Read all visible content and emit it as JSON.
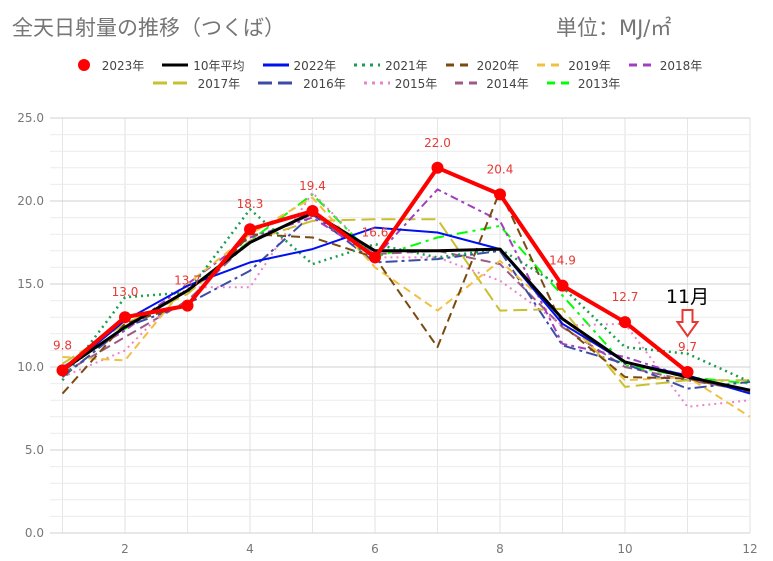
{
  "header": {
    "title": "全天日射量の推移（つくば）",
    "unit": "単位：MJ/㎡"
  },
  "annotation": {
    "month_label": "11月"
  },
  "chart_data": {
    "type": "line",
    "xlim": [
      0.8,
      12
    ],
    "ylim": [
      0,
      25
    ],
    "x_ticks": [
      2,
      4,
      6,
      8,
      10,
      12
    ],
    "y_ticks": [
      0.0,
      5.0,
      10.0,
      15.0,
      20.0,
      25.0
    ],
    "y_tick_labels": [
      "0.0",
      "5.0",
      "10.0",
      "15.0",
      "20.0",
      "25.0"
    ],
    "grid": true,
    "legend_position": "top",
    "legend_rows": [
      [
        "2023年",
        "10年平均",
        "2022年",
        "2021年",
        "2020年",
        "2019年",
        "2018年"
      ],
      [
        "2017年",
        "2016年",
        "2015年",
        "2014年",
        "2013年"
      ]
    ],
    "series": [
      {
        "name": "2013年",
        "color": "#00ff00",
        "dash": "11,5,3,5",
        "width": 2,
        "x": [
          1,
          2,
          3,
          4,
          5,
          6,
          7,
          8,
          9,
          10,
          11,
          12
        ],
        "y": [
          9.8,
          12.3,
          14.6,
          17.6,
          20.4,
          16.6,
          17.8,
          18.5,
          14.3,
          10.1,
          9.4,
          9.0
        ]
      },
      {
        "name": "2014年",
        "color": "#9c5a85",
        "dash": "10,5",
        "width": 2,
        "x": [
          1,
          2,
          3,
          4,
          5,
          6,
          7,
          8,
          9,
          10,
          11,
          12
        ],
        "y": [
          9.6,
          11.8,
          14.0,
          17.6,
          19.2,
          16.8,
          17.0,
          16.2,
          12.4,
          10.0,
          9.2,
          8.6
        ]
      },
      {
        "name": "2015年",
        "color": "#ee82c8",
        "dash": "2,4",
        "width": 2,
        "x": [
          1,
          2,
          3,
          4,
          5,
          6,
          7,
          8,
          9,
          10,
          11,
          12
        ],
        "y": [
          9.4,
          11.0,
          14.8,
          14.8,
          20.5,
          16.6,
          16.6,
          15.2,
          12.5,
          12.6,
          7.6,
          8.0
        ]
      },
      {
        "name": "2016年",
        "color": "#3b4ba8",
        "dash": "12,4,3,4",
        "width": 2,
        "x": [
          1,
          2,
          3,
          4,
          5,
          6,
          7,
          8,
          9,
          10,
          11,
          12
        ],
        "y": [
          9.4,
          12.4,
          13.8,
          15.8,
          19.2,
          16.3,
          16.5,
          17.0,
          11.3,
          10.2,
          8.7,
          9.1
        ]
      },
      {
        "name": "2017年",
        "color": "#c8c030",
        "dash": "14,6",
        "width": 2,
        "x": [
          1,
          2,
          3,
          4,
          5,
          6,
          7,
          8,
          9,
          10,
          11,
          12
        ],
        "y": [
          10.2,
          12.6,
          14.4,
          17.6,
          18.8,
          18.9,
          18.9,
          13.4,
          13.5,
          8.8,
          9.2,
          9.2
        ]
      },
      {
        "name": "2018年",
        "color": "#a040c0",
        "dash": "8,4,3,4",
        "width": 2,
        "x": [
          1,
          2,
          3,
          4,
          5,
          6,
          7,
          8,
          9,
          10,
          11,
          12
        ],
        "y": [
          10.0,
          12.2,
          15.0,
          17.8,
          19.0,
          16.6,
          20.7,
          18.8,
          11.4,
          10.6,
          9.4,
          8.5
        ]
      },
      {
        "name": "2019年",
        "color": "#f0c040",
        "dash": "8,5",
        "width": 2,
        "x": [
          1,
          2,
          3,
          4,
          5,
          6,
          7,
          8,
          9,
          10,
          11,
          12
        ],
        "y": [
          10.6,
          10.4,
          15.0,
          18.0,
          20.2,
          16.0,
          13.4,
          16.4,
          13.0,
          9.2,
          9.4,
          7.0
        ]
      },
      {
        "name": "2020年",
        "color": "#7a4a10",
        "dash": "9,5",
        "width": 2,
        "x": [
          1,
          2,
          3,
          4,
          5,
          6,
          7,
          8,
          9,
          10,
          11,
          12
        ],
        "y": [
          8.4,
          12.6,
          13.8,
          18.0,
          17.8,
          16.6,
          11.2,
          20.6,
          12.5,
          9.4,
          9.3,
          8.5
        ]
      },
      {
        "name": "2021年",
        "color": "#1a9e50",
        "dash": "2,4",
        "width": 2.5,
        "x": [
          1,
          2,
          3,
          4,
          5,
          6,
          7,
          8,
          9,
          10,
          11,
          12
        ],
        "y": [
          9.2,
          14.2,
          14.5,
          19.5,
          16.2,
          17.4,
          16.6,
          17.1,
          14.8,
          11.2,
          10.8,
          9.1
        ]
      },
      {
        "name": "2022年",
        "color": "#0010ee",
        "dash": "",
        "width": 2,
        "x": [
          1,
          2,
          3,
          4,
          5,
          6,
          7,
          8,
          9,
          10,
          11,
          12
        ],
        "y": [
          9.7,
          12.8,
          14.9,
          16.3,
          17.1,
          18.4,
          18.1,
          17.1,
          12.6,
          10.3,
          9.5,
          8.4
        ]
      },
      {
        "name": "10年平均",
        "color": "#000000",
        "dash": "",
        "width": 3,
        "x": [
          1,
          2,
          3,
          4,
          5,
          6,
          7,
          8,
          9,
          10,
          11,
          12
        ],
        "y": [
          9.8,
          12.4,
          14.6,
          17.5,
          19.3,
          17.0,
          17.0,
          17.1,
          12.9,
          10.3,
          9.4,
          8.6
        ]
      },
      {
        "name": "2023年",
        "color": "#ff0000",
        "dash": "",
        "width": 4,
        "markers": true,
        "x": [
          1,
          2,
          3,
          4,
          5,
          6,
          7,
          8,
          9,
          10,
          11
        ],
        "y": [
          9.8,
          13.0,
          13.7,
          18.3,
          19.4,
          16.6,
          22.0,
          20.4,
          14.9,
          12.7,
          9.7
        ],
        "labels": [
          "9.8",
          "13.0",
          "13.7",
          "18.3",
          "19.4",
          "16.6",
          "22.0",
          "20.4",
          "14.9",
          "12.7",
          "9.7"
        ]
      }
    ],
    "legend_styles": {
      "2023年": {
        "color": "#ff0000",
        "kind": "dot"
      },
      "10年平均": {
        "color": "#000000",
        "kind": "solid"
      },
      "2022年": {
        "color": "#0010ee",
        "kind": "solid"
      },
      "2021年": {
        "color": "#1a9e50",
        "kind": "dotted"
      },
      "2020年": {
        "color": "#7a4a10",
        "kind": "dashed"
      },
      "2019年": {
        "color": "#f0c040",
        "kind": "dashed"
      },
      "2018年": {
        "color": "#a040c0",
        "kind": "dashed"
      },
      "2017年": {
        "color": "#c8c030",
        "kind": "longdash"
      },
      "2016年": {
        "color": "#3b4ba8",
        "kind": "longdash"
      },
      "2015年": {
        "color": "#ee82c8",
        "kind": "dotted"
      },
      "2014年": {
        "color": "#9c5a85",
        "kind": "dashed"
      },
      "2013年": {
        "color": "#00ff00",
        "kind": "dashed"
      }
    },
    "colors": {
      "grid": "#e6e6e6",
      "axis_text": "#777777",
      "label_text": "#e53935",
      "arrow": "#e53935"
    }
  }
}
